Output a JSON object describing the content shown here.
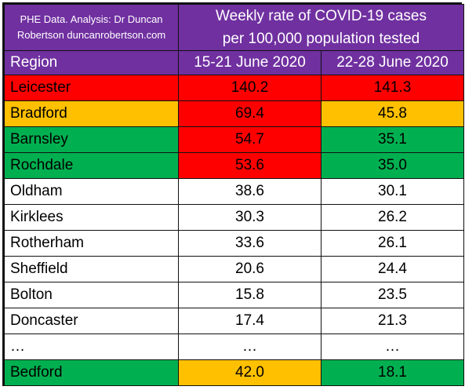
{
  "credit": {
    "line1": "PHE Data. Analysis: Dr Duncan",
    "line2": "Robertson duncanrobertson.com"
  },
  "title": {
    "line1": "Weekly rate of COVID-19 cases",
    "line2": "per 100,000 population tested"
  },
  "headers": {
    "region": "Region",
    "week1": "15-21 June 2020",
    "week2": "22-28 June 2020"
  },
  "colors": {
    "header": "#7030a0",
    "red": "#ff0000",
    "amber": "#ffc000",
    "green": "#00b050",
    "white": "#ffffff"
  },
  "rows": [
    {
      "region": "Leicester",
      "week1": "140.2",
      "week2": "141.3",
      "region_color": "red",
      "week1_color": "red",
      "week2_color": "red"
    },
    {
      "region": "Bradford",
      "week1": "69.4",
      "week2": "45.8",
      "region_color": "amber",
      "week1_color": "red",
      "week2_color": "amber"
    },
    {
      "region": "Barnsley",
      "week1": "54.7",
      "week2": "35.1",
      "region_color": "green",
      "week1_color": "red",
      "week2_color": "green"
    },
    {
      "region": "Rochdale",
      "week1": "53.6",
      "week2": "35.0",
      "region_color": "green",
      "week1_color": "red",
      "week2_color": "green"
    },
    {
      "region": "Oldham",
      "week1": "38.6",
      "week2": "30.1",
      "region_color": "white",
      "week1_color": "white",
      "week2_color": "white"
    },
    {
      "region": "Kirklees",
      "week1": "30.3",
      "week2": "26.2",
      "region_color": "white",
      "week1_color": "white",
      "week2_color": "white"
    },
    {
      "region": "Rotherham",
      "week1": "33.6",
      "week2": "26.1",
      "region_color": "white",
      "week1_color": "white",
      "week2_color": "white"
    },
    {
      "region": "Sheffield",
      "week1": "20.6",
      "week2": "24.4",
      "region_color": "white",
      "week1_color": "white",
      "week2_color": "white"
    },
    {
      "region": "Bolton",
      "week1": "15.8",
      "week2": "23.5",
      "region_color": "white",
      "week1_color": "white",
      "week2_color": "white"
    },
    {
      "region": "Doncaster",
      "week1": "17.4",
      "week2": "21.3",
      "region_color": "white",
      "week1_color": "white",
      "week2_color": "white"
    },
    {
      "region": "…",
      "week1": "…",
      "week2": "…",
      "region_color": "white",
      "week1_color": "white",
      "week2_color": "white"
    },
    {
      "region": "Bedford",
      "week1": "42.0",
      "week2": "18.1",
      "region_color": "green",
      "week1_color": "amber",
      "week2_color": "green"
    }
  ]
}
